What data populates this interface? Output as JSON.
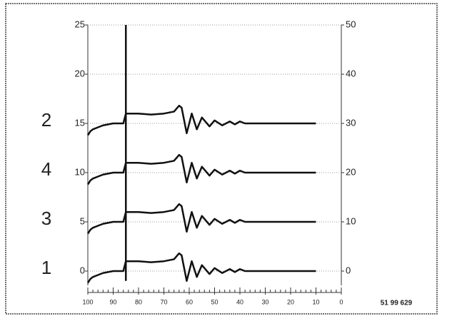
{
  "chart_data": {
    "type": "line",
    "x": [
      100,
      99,
      98,
      96,
      94,
      92,
      90,
      88,
      86,
      85,
      84,
      80,
      75,
      70,
      66,
      64,
      63,
      61,
      59,
      57,
      55,
      52,
      50,
      47,
      44,
      42,
      40,
      38,
      30,
      20,
      10
    ],
    "series": [
      {
        "name": "2",
        "color": "#111111",
        "values": [
          13.8,
          14.2,
          14.4,
          14.6,
          14.8,
          14.9,
          15,
          15,
          15,
          16,
          16,
          16,
          15.9,
          16,
          16.2,
          16.8,
          16.6,
          14,
          16,
          14.4,
          15.6,
          14.7,
          15.3,
          14.8,
          15.2,
          14.9,
          15.2,
          15,
          15,
          15,
          15
        ]
      },
      {
        "name": "4",
        "color": "#111111",
        "values": [
          8.8,
          9.2,
          9.4,
          9.6,
          9.8,
          9.9,
          10,
          10,
          10,
          11,
          11,
          11,
          10.9,
          11,
          11.2,
          11.8,
          11.6,
          9,
          11,
          9.4,
          10.6,
          9.7,
          10.3,
          9.8,
          10.2,
          9.9,
          10.2,
          10,
          10,
          10,
          10
        ]
      },
      {
        "name": "3",
        "color": "#111111",
        "values": [
          3.8,
          4.2,
          4.4,
          4.6,
          4.8,
          4.9,
          5,
          5,
          5,
          6,
          6,
          6,
          5.9,
          6,
          6.2,
          6.8,
          6.6,
          4,
          6,
          4.4,
          5.6,
          4.7,
          5.3,
          4.8,
          5.2,
          4.9,
          5.2,
          5,
          5,
          5,
          5
        ]
      },
      {
        "name": "1",
        "color": "#111111",
        "values": [
          -1.2,
          -0.8,
          -0.6,
          -0.4,
          -0.2,
          -0.1,
          0,
          0,
          0,
          1,
          1,
          1,
          0.9,
          1,
          1.2,
          1.8,
          1.6,
          -1,
          1,
          -0.6,
          0.6,
          -0.3,
          0.3,
          -0.2,
          0.2,
          -0.1,
          0.2,
          0,
          0,
          0,
          0
        ]
      },
      {
        "color": "#111111",
        "x": [
          85,
          85
        ],
        "values": [
          -1,
          25
        ]
      }
    ],
    "xlim": [
      100,
      0
    ],
    "xticks": [
      100,
      90,
      80,
      70,
      60,
      50,
      40,
      30,
      20,
      10,
      0
    ],
    "ylim": [
      0,
      25
    ],
    "yticks": [
      0,
      5,
      10,
      15,
      20,
      25
    ],
    "y2lim": [
      0,
      50
    ],
    "y2ticks": [
      0,
      10,
      20,
      30,
      40,
      50
    ],
    "grid": true,
    "footnote": "51 99 629"
  }
}
